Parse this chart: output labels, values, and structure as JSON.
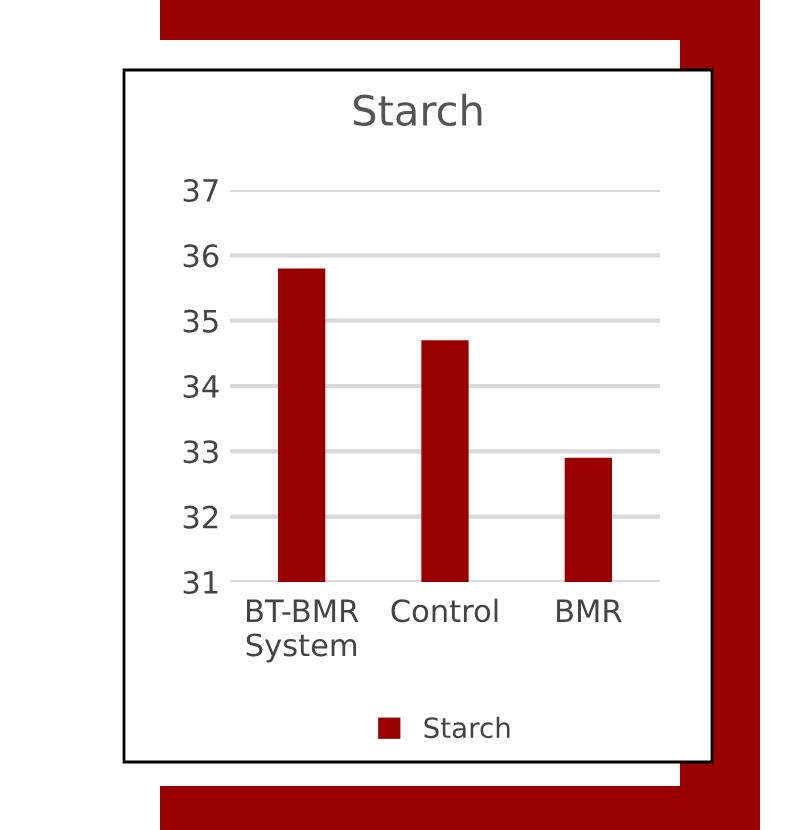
{
  "chart_data": {
    "type": "bar",
    "title": "Starch",
    "categories": [
      "BT-BMR\nSystem",
      "Control",
      "BMR"
    ],
    "series": [
      {
        "name": "Starch",
        "color": "#990000",
        "values": [
          35.8,
          34.7,
          32.9
        ]
      }
    ],
    "ylim": [
      31,
      37
    ],
    "yticks": [
      31,
      32,
      33,
      34,
      35,
      36,
      37
    ],
    "grid": "y",
    "legend": "bottom"
  }
}
